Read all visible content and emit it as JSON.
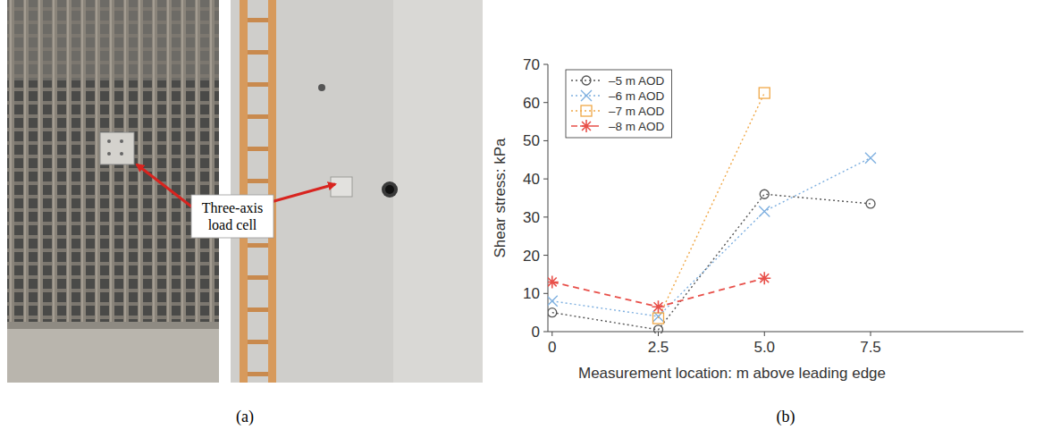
{
  "panels": {
    "a": {
      "label": "(a)",
      "annotation": "Three-axis load cell"
    },
    "b": {
      "label": "(b)"
    }
  },
  "chart_data": {
    "type": "line",
    "x_label": "Measurement location: m above leading edge",
    "y_label": "Shear stress: kPa",
    "x": [
      0,
      2.5,
      5,
      7.5
    ],
    "xlim": [
      -0.1,
      11.1
    ],
    "xticks": [
      0,
      2.5,
      {
        "value": 5,
        "label": "5.0"
      },
      7.5
    ],
    "ylim": [
      0,
      70
    ],
    "yticks": [
      0,
      10,
      20,
      30,
      40,
      50,
      60,
      70
    ],
    "grid": false,
    "legend": "upper left",
    "series": [
      {
        "name": "–5 m AOD",
        "color": "#555555",
        "marker": "circle",
        "line_style": "dotted",
        "values": [
          5,
          0.5,
          36,
          33.5
        ]
      },
      {
        "name": "–6 m AOD",
        "color": "#7fb0e0",
        "marker": "x",
        "line_style": "dotted",
        "values": [
          8,
          4,
          31.5,
          45.5
        ]
      },
      {
        "name": "–7 m AOD",
        "color": "#f0a848",
        "marker": "square",
        "line_style": "dotted",
        "values": [
          null,
          3.5,
          62.5,
          null
        ]
      },
      {
        "name": "–8 m AOD",
        "color": "#e8504a",
        "marker": "star",
        "line_style": "dashed",
        "values": [
          13,
          6.5,
          14,
          null
        ]
      }
    ]
  }
}
